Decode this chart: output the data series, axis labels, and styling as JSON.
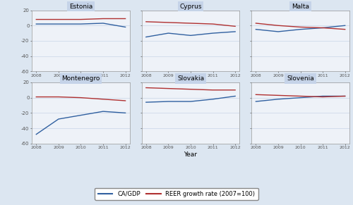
{
  "years": [
    2008,
    2009,
    2010,
    2011,
    2012
  ],
  "countries": [
    "Estonia",
    "Cyprus",
    "Malta",
    "Montenegro",
    "Slovakia",
    "Slovenia"
  ],
  "ca_gdp": {
    "Estonia": [
      2,
      2,
      2,
      3,
      -2
    ],
    "Cyprus": [
      -15,
      -10,
      -13,
      -10,
      -8
    ],
    "Malta": [
      -5,
      -8,
      -5,
      -3,
      0
    ],
    "Montenegro": [
      -48,
      -28,
      -23,
      -18,
      -20
    ],
    "Slovakia": [
      -6,
      -5,
      -5,
      -2,
      2
    ],
    "Slovenia": [
      -5,
      -2,
      0,
      2,
      2
    ]
  },
  "reer": {
    "Estonia": [
      8,
      8,
      8,
      9,
      9
    ],
    "Cyprus": [
      5,
      4,
      3,
      2,
      -1
    ],
    "Malta": [
      3,
      0,
      -2,
      -3,
      -5
    ],
    "Montenegro": [
      1,
      1,
      0,
      -2,
      -4
    ],
    "Slovakia": [
      13,
      12,
      11,
      10,
      10
    ],
    "Slovenia": [
      4,
      3,
      2,
      1,
      2
    ]
  },
  "ylim": [
    -60,
    20
  ],
  "yticks": [
    -60,
    -40,
    -20,
    0,
    20
  ],
  "ca_color": "#3060a0",
  "reer_color": "#b03030",
  "bg_color": "#dce6f1",
  "panel_bg": "#eef2f8",
  "title_bg": "#c5d3e8",
  "xlabel": "Year",
  "legend_ca": "CA/GDP",
  "legend_reer": "REER growth rate (2007=100)"
}
